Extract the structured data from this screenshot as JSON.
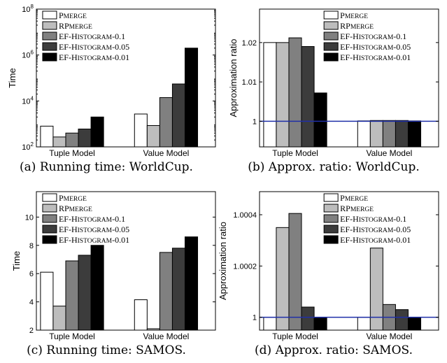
{
  "legend_series": [
    "PMERGE",
    "RPMERGE",
    "EF-HISTOGRAM-0.1",
    "EF-HISTOGRAM-0.05",
    "EF-HISTOGRAM-0.01"
  ],
  "series_colors": [
    "#ffffff",
    "#bdbdbd",
    "#808080",
    "#3c3c3c",
    "#000000"
  ],
  "reference_line_color": "#1f2fa8",
  "chart_data": [
    {
      "type": "bar",
      "caption": "(a) Running time: WorldCup.",
      "ylabel": "Time",
      "yscale": "log",
      "ylim": [
        100,
        100000000
      ],
      "ytick_values": [
        100,
        10000,
        1000000,
        100000000
      ],
      "ytick_labels": [
        [
          "10",
          "2"
        ],
        [
          "10",
          "4"
        ],
        [
          "10",
          "6"
        ],
        [
          "10",
          "8"
        ]
      ],
      "categories": [
        "Tuple Model",
        "Value Model"
      ],
      "legend_position": "top-left",
      "series": [
        {
          "name": "PMERGE",
          "values": [
            800,
            2700
          ]
        },
        {
          "name": "RPMERGE",
          "values": [
            270,
            850
          ]
        },
        {
          "name": "EF-HISTOGRAM-0.1",
          "values": [
            400,
            14000
          ]
        },
        {
          "name": "EF-HISTOGRAM-0.05",
          "values": [
            600,
            55000
          ]
        },
        {
          "name": "EF-HISTOGRAM-0.01",
          "values": [
            2000,
            2000000
          ]
        }
      ]
    },
    {
      "type": "bar",
      "caption": "(b) Approx. ratio: WorldCup.",
      "ylabel": "Approximation ratio",
      "yscale": "linear",
      "ylim": [
        0.9935,
        1.0285
      ],
      "ytick_values": [
        1,
        1.01,
        1.02
      ],
      "ytick_labels": [
        "1",
        "1.01",
        "1.02"
      ],
      "reference_line": 1,
      "categories": [
        "Tuple Model",
        "Value Model"
      ],
      "legend_position": "top-right",
      "series": [
        {
          "name": "PMERGE",
          "values": [
            1.02,
            1.0001
          ]
        },
        {
          "name": "RPMERGE",
          "values": [
            1.02,
            1.0002
          ]
        },
        {
          "name": "EF-HISTOGRAM-0.1",
          "values": [
            1.0212,
            1.0002
          ]
        },
        {
          "name": "EF-HISTOGRAM-0.05",
          "values": [
            1.019,
            1.0002
          ]
        },
        {
          "name": "EF-HISTOGRAM-0.01",
          "values": [
            1.0072,
            1.0001
          ]
        }
      ]
    },
    {
      "type": "bar",
      "caption": "(c) Running time: SAMOS.",
      "ylabel": "Time",
      "yscale": "linear",
      "ylim": [
        2,
        11.8
      ],
      "ytick_values": [
        2,
        4,
        6,
        8,
        10
      ],
      "ytick_labels": [
        "2",
        "4",
        "6",
        "8",
        "10"
      ],
      "categories": [
        "Tuple Model",
        "Value Model"
      ],
      "legend_position": "top-left",
      "series": [
        {
          "name": "PMERGE",
          "values": [
            6.1,
            4.15
          ]
        },
        {
          "name": "RPMERGE",
          "values": [
            3.7,
            2.1
          ]
        },
        {
          "name": "EF-HISTOGRAM-0.1",
          "values": [
            6.9,
            7.5
          ]
        },
        {
          "name": "EF-HISTOGRAM-0.05",
          "values": [
            7.3,
            7.8
          ]
        },
        {
          "name": "EF-HISTOGRAM-0.01",
          "values": [
            8.0,
            8.6
          ]
        }
      ]
    },
    {
      "type": "bar",
      "caption": "(d) Approx. ratio: SAMOS.",
      "ylabel": "Approximation ratio",
      "yscale": "linear",
      "ylim": [
        0.99995,
        1.00049
      ],
      "ytick_values": [
        1,
        1.0002,
        1.0004
      ],
      "ytick_labels": [
        "1",
        "1.0002",
        "1.0004"
      ],
      "reference_line": 1,
      "categories": [
        "Tuple Model",
        "Value Model"
      ],
      "legend_position": "top-right",
      "series": [
        {
          "name": "PMERGE",
          "values": [
            1.0,
            1.0
          ]
        },
        {
          "name": "RPMERGE",
          "values": [
            1.00035,
            1.00027
          ]
        },
        {
          "name": "EF-HISTOGRAM-0.1",
          "values": [
            1.000405,
            1.00005
          ]
        },
        {
          "name": "EF-HISTOGRAM-0.05",
          "values": [
            1.00004,
            1.00003
          ]
        },
        {
          "name": "EF-HISTOGRAM-0.01",
          "values": [
            1.0,
            1.0
          ]
        }
      ]
    }
  ]
}
